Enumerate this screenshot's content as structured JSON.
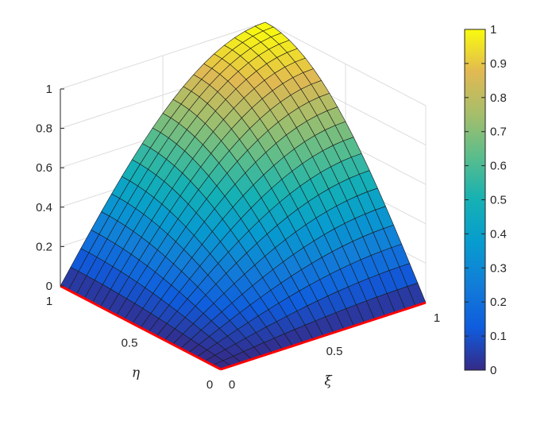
{
  "chart_data": {
    "type": "surface",
    "function": "z = sin(pi*xi/2) * sin(pi*eta/2)",
    "grid": {
      "xi_steps": 20,
      "eta_steps": 20
    },
    "x": {
      "label": "ξ",
      "range": [
        0,
        1
      ],
      "ticks": [
        0,
        0.5,
        1
      ],
      "tick_labels": [
        "0",
        "0.5",
        "1"
      ]
    },
    "y": {
      "label": "η",
      "range": [
        0,
        1
      ],
      "ticks": [
        0,
        0.5,
        1
      ],
      "tick_labels": [
        "0",
        "0.5",
        "1"
      ]
    },
    "z": {
      "range": [
        0,
        1
      ],
      "ticks": [
        0,
        0.2,
        0.4,
        0.6,
        0.8,
        1
      ],
      "tick_labels": [
        "0",
        "0.2",
        "0.4",
        "0.6",
        "0.8",
        "1"
      ]
    },
    "colorbar": {
      "colormap": "parula",
      "range": [
        0,
        1
      ],
      "ticks": [
        0,
        0.1,
        0.2,
        0.3,
        0.4,
        0.5,
        0.6,
        0.7,
        0.8,
        0.9,
        1
      ],
      "tick_labels": [
        "0",
        "0.1",
        "0.2",
        "0.3",
        "0.4",
        "0.5",
        "0.6",
        "0.7",
        "0.8",
        "0.9",
        "1"
      ]
    },
    "boundary_highlight": {
      "edges": [
        "xi=0",
        "eta=0"
      ],
      "color": "#ff0000"
    },
    "grid_lines": true
  }
}
